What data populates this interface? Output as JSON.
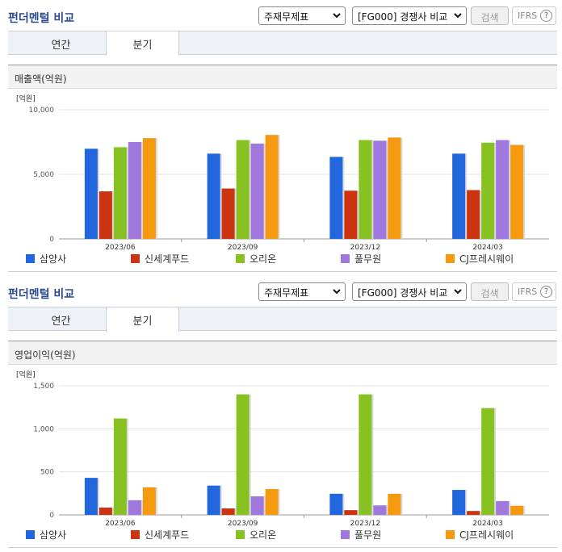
{
  "panels": [
    {
      "title": "펀더멘털 비교",
      "select1": "주재무제표",
      "select2": "[FG000] 경쟁사 비교",
      "search_label": "검색",
      "ifrs_label": "IFRS",
      "ifrs_help": "?",
      "tabs": [
        {
          "label": "연간",
          "active": false
        },
        {
          "label": "분기",
          "active": true
        }
      ],
      "section_title": "매출액(억원)",
      "unit": "[억원]"
    },
    {
      "title": "펀더멘털 비교",
      "select1": "주재무제표",
      "select2": "[FG000] 경쟁사 비교",
      "search_label": "검색",
      "ifrs_label": "IFRS",
      "ifrs_help": "?",
      "tabs": [
        {
          "label": "연간",
          "active": false
        },
        {
          "label": "분기",
          "active": true
        }
      ],
      "section_title": "영업이익(억원)",
      "unit": "[억원]"
    }
  ],
  "colors": [
    "#2266dd",
    "#cc3311",
    "#88c222",
    "#a077dd",
    "#f59a10"
  ],
  "chart_data": [
    {
      "type": "bar",
      "title": "매출액(억원)",
      "ylabel": "[억원]",
      "categories": [
        "2023/06",
        "2023/09",
        "2023/12",
        "2024/03"
      ],
      "ylim": [
        0,
        10000
      ],
      "yticks": [
        0,
        5000,
        10000
      ],
      "ytick_labels": [
        "0",
        "5,000",
        "10,000"
      ],
      "grid": true,
      "legend": "bottom",
      "series": [
        {
          "name": "삼양사",
          "values": [
            6980,
            6600,
            6350,
            6600
          ]
        },
        {
          "name": "신세계푸드",
          "values": [
            3680,
            3900,
            3730,
            3780
          ]
        },
        {
          "name": "오리온",
          "values": [
            7100,
            7650,
            7650,
            7450
          ]
        },
        {
          "name": "풀무원",
          "values": [
            7500,
            7380,
            7600,
            7650
          ]
        },
        {
          "name": "CJ프레시웨이",
          "values": [
            7800,
            8050,
            7850,
            7280
          ]
        }
      ]
    },
    {
      "type": "bar",
      "title": "영업이익(억원)",
      "ylabel": "[억원]",
      "categories": [
        "2023/06",
        "2023/09",
        "2023/12",
        "2024/03"
      ],
      "ylim": [
        0,
        1500
      ],
      "yticks": [
        0,
        500,
        1000,
        1500
      ],
      "ytick_labels": [
        "0",
        "500",
        "1,000",
        "1,500"
      ],
      "grid": true,
      "legend": "bottom",
      "series": [
        {
          "name": "삼양사",
          "values": [
            430,
            340,
            245,
            290
          ]
        },
        {
          "name": "신세계푸드",
          "values": [
            85,
            75,
            55,
            45
          ]
        },
        {
          "name": "오리온",
          "values": [
            1120,
            1400,
            1400,
            1240
          ]
        },
        {
          "name": "풀무원",
          "values": [
            170,
            215,
            110,
            160
          ]
        },
        {
          "name": "CJ프레시웨이",
          "values": [
            320,
            300,
            245,
            105
          ]
        }
      ]
    }
  ]
}
